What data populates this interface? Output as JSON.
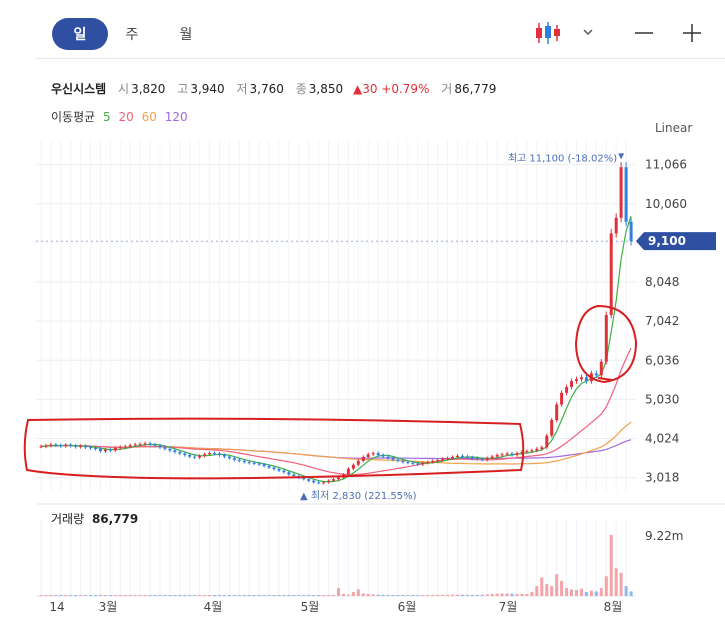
{
  "tabs": {
    "day": "일",
    "week": "주",
    "month": "월"
  },
  "controls": {
    "chart_type_icon": "candlestick-icon",
    "dropdown_icon": "chevron-down-icon",
    "minus": "—",
    "plus": "+"
  },
  "quote": {
    "name": "우신시스템",
    "open_label": "시",
    "open": "3,820",
    "high_label": "고",
    "high": "3,940",
    "low_label": "저",
    "low": "3,760",
    "close_label": "종",
    "close": "3,850",
    "change": "▲30 +0.79%",
    "volume_label": "거",
    "volume": "86,779"
  },
  "ma_legend": {
    "label": "이동평균",
    "ma5": "5",
    "ma20": "20",
    "ma60": "60",
    "ma120": "120",
    "colors": {
      "ma5": "#3cb043",
      "ma20": "#f0607a",
      "ma60": "#f4a04a",
      "ma120": "#a06ae0"
    }
  },
  "scale_mode": "Linear",
  "colors": {
    "up": "#e0303a",
    "down": "#2f7fe0",
    "accent": "#2f4fa3",
    "annotation": "#d81e1e"
  },
  "chart_data": {
    "type": "candlestick",
    "y_ticks": [
      3018,
      4024,
      5030,
      6036,
      7042,
      8048,
      10060,
      11066
    ],
    "y_tick_labels": [
      "3,018",
      "4,024",
      "5,030",
      "6,036",
      "7,042",
      "8,048",
      "10,060",
      "11,066"
    ],
    "ylim": [
      2650,
      11700
    ],
    "x_tick_labels": [
      "14",
      "3월",
      "4월",
      "5월",
      "6월",
      "7월",
      "8월"
    ],
    "current_price": 9100,
    "current_price_label": "9,100",
    "high_marker": {
      "text": "최고 11,100 (-18.02%)",
      "value": 11100
    },
    "low_marker": {
      "text": "최저 2,830 (221.55%)",
      "value": 2830
    },
    "closes": [
      3820,
      3840,
      3870,
      3850,
      3830,
      3860,
      3840,
      3810,
      3830,
      3800,
      3780,
      3760,
      3700,
      3740,
      3720,
      3780,
      3800,
      3820,
      3850,
      3870,
      3880,
      3900,
      3870,
      3840,
      3800,
      3760,
      3720,
      3680,
      3640,
      3600,
      3560,
      3540,
      3580,
      3620,
      3650,
      3640,
      3600,
      3560,
      3520,
      3480,
      3450,
      3420,
      3400,
      3380,
      3360,
      3320,
      3280,
      3240,
      3200,
      3160,
      3100,
      3060,
      3020,
      2980,
      2940,
      2900,
      2880,
      2900,
      2940,
      2980,
      3020,
      3100,
      3250,
      3350,
      3450,
      3550,
      3620,
      3650,
      3600,
      3560,
      3520,
      3480,
      3450,
      3420,
      3400,
      3380,
      3360,
      3400,
      3420,
      3450,
      3470,
      3500,
      3520,
      3550,
      3580,
      3560,
      3540,
      3520,
      3500,
      3480,
      3520,
      3560,
      3600,
      3620,
      3640,
      3600,
      3650,
      3680,
      3700,
      3720,
      3760,
      3800,
      4100,
      4500,
      4900,
      5200,
      5350,
      5500,
      5550,
      5600,
      5500,
      5700,
      5650,
      6000,
      7200,
      9300,
      9700,
      11000,
      9600,
      9100
    ],
    "volume_label": "거래량",
    "volume": "86,779",
    "volume_axis_label": "9.22m",
    "volume_max": 9220000,
    "volumes": [
      20000,
      15000,
      18000,
      12000,
      10000,
      14000,
      12000,
      16000,
      11000,
      9000,
      13000,
      15000,
      12000,
      10000,
      14000,
      12000,
      10000,
      11000,
      13000,
      15000,
      12000,
      10000,
      9000,
      11000,
      12000,
      14000,
      13000,
      11000,
      10000,
      12000,
      15000,
      13000,
      11000,
      10000,
      12000,
      14000,
      11000,
      10000,
      9000,
      12000,
      11000,
      10000,
      13000,
      12000,
      14000,
      13000,
      11000,
      10000,
      9000,
      12000,
      14000,
      13000,
      12000,
      11000,
      10000,
      9000,
      11000,
      13000,
      12000,
      14000,
      1200000,
      300000,
      200000,
      600000,
      1000000,
      400000,
      300000,
      250000,
      200000,
      180000,
      150000,
      130000,
      120000,
      110000,
      100000,
      90000,
      100000,
      120000,
      140000,
      160000,
      150000,
      170000,
      180000,
      200000,
      190000,
      180000,
      170000,
      160000,
      150000,
      200000,
      250000,
      300000,
      350000,
      400000,
      380000,
      360000,
      340000,
      320000,
      300000,
      600000,
      1500000,
      2800000,
      1800000,
      1500000,
      3300000,
      2300000,
      1200000,
      1000000,
      900000,
      1100000,
      600000,
      800000,
      700000,
      1200000,
      3000000,
      9220000,
      4200000,
      3500000,
      1500000,
      700000
    ]
  }
}
